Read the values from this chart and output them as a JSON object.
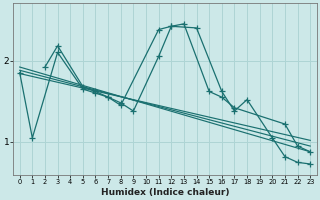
{
  "xlabel": "Humidex (Indice chaleur)",
  "bg_color": "#cce8e8",
  "grid_color": "#aed4d4",
  "line_color": "#1a7070",
  "xlim": [
    -0.5,
    23.5
  ],
  "ylim": [
    0.6,
    2.7
  ],
  "yticks": [
    1,
    2
  ],
  "xticks": [
    0,
    1,
    2,
    3,
    4,
    5,
    6,
    7,
    8,
    9,
    10,
    11,
    12,
    13,
    14,
    15,
    16,
    17,
    18,
    19,
    20,
    21,
    22,
    23
  ],
  "lines": [
    {
      "x": [
        0,
        1,
        3,
        5,
        6,
        7,
        8,
        9,
        11,
        12,
        13,
        15,
        16,
        17,
        21,
        22,
        23
      ],
      "y": [
        1.85,
        1.05,
        2.1,
        1.65,
        1.6,
        1.55,
        1.48,
        1.38,
        2.05,
        2.42,
        2.45,
        1.62,
        1.55,
        1.42,
        1.22,
        0.95,
        0.88
      ],
      "marker": true
    },
    {
      "x": [
        2,
        3,
        5,
        6,
        7,
        8,
        11,
        12,
        14,
        16,
        17,
        18,
        20,
        21,
        22,
        23
      ],
      "y": [
        1.92,
        2.18,
        1.68,
        1.62,
        1.55,
        1.45,
        2.38,
        2.42,
        2.4,
        1.62,
        1.38,
        1.52,
        1.05,
        0.82,
        0.75,
        0.73
      ],
      "marker": true
    },
    {
      "x": [
        0,
        23
      ],
      "y": [
        1.92,
        0.88
      ],
      "marker": false
    },
    {
      "x": [
        0,
        23
      ],
      "y": [
        1.88,
        0.95
      ],
      "marker": false
    },
    {
      "x": [
        0,
        23
      ],
      "y": [
        1.84,
        1.02
      ],
      "marker": false
    }
  ]
}
